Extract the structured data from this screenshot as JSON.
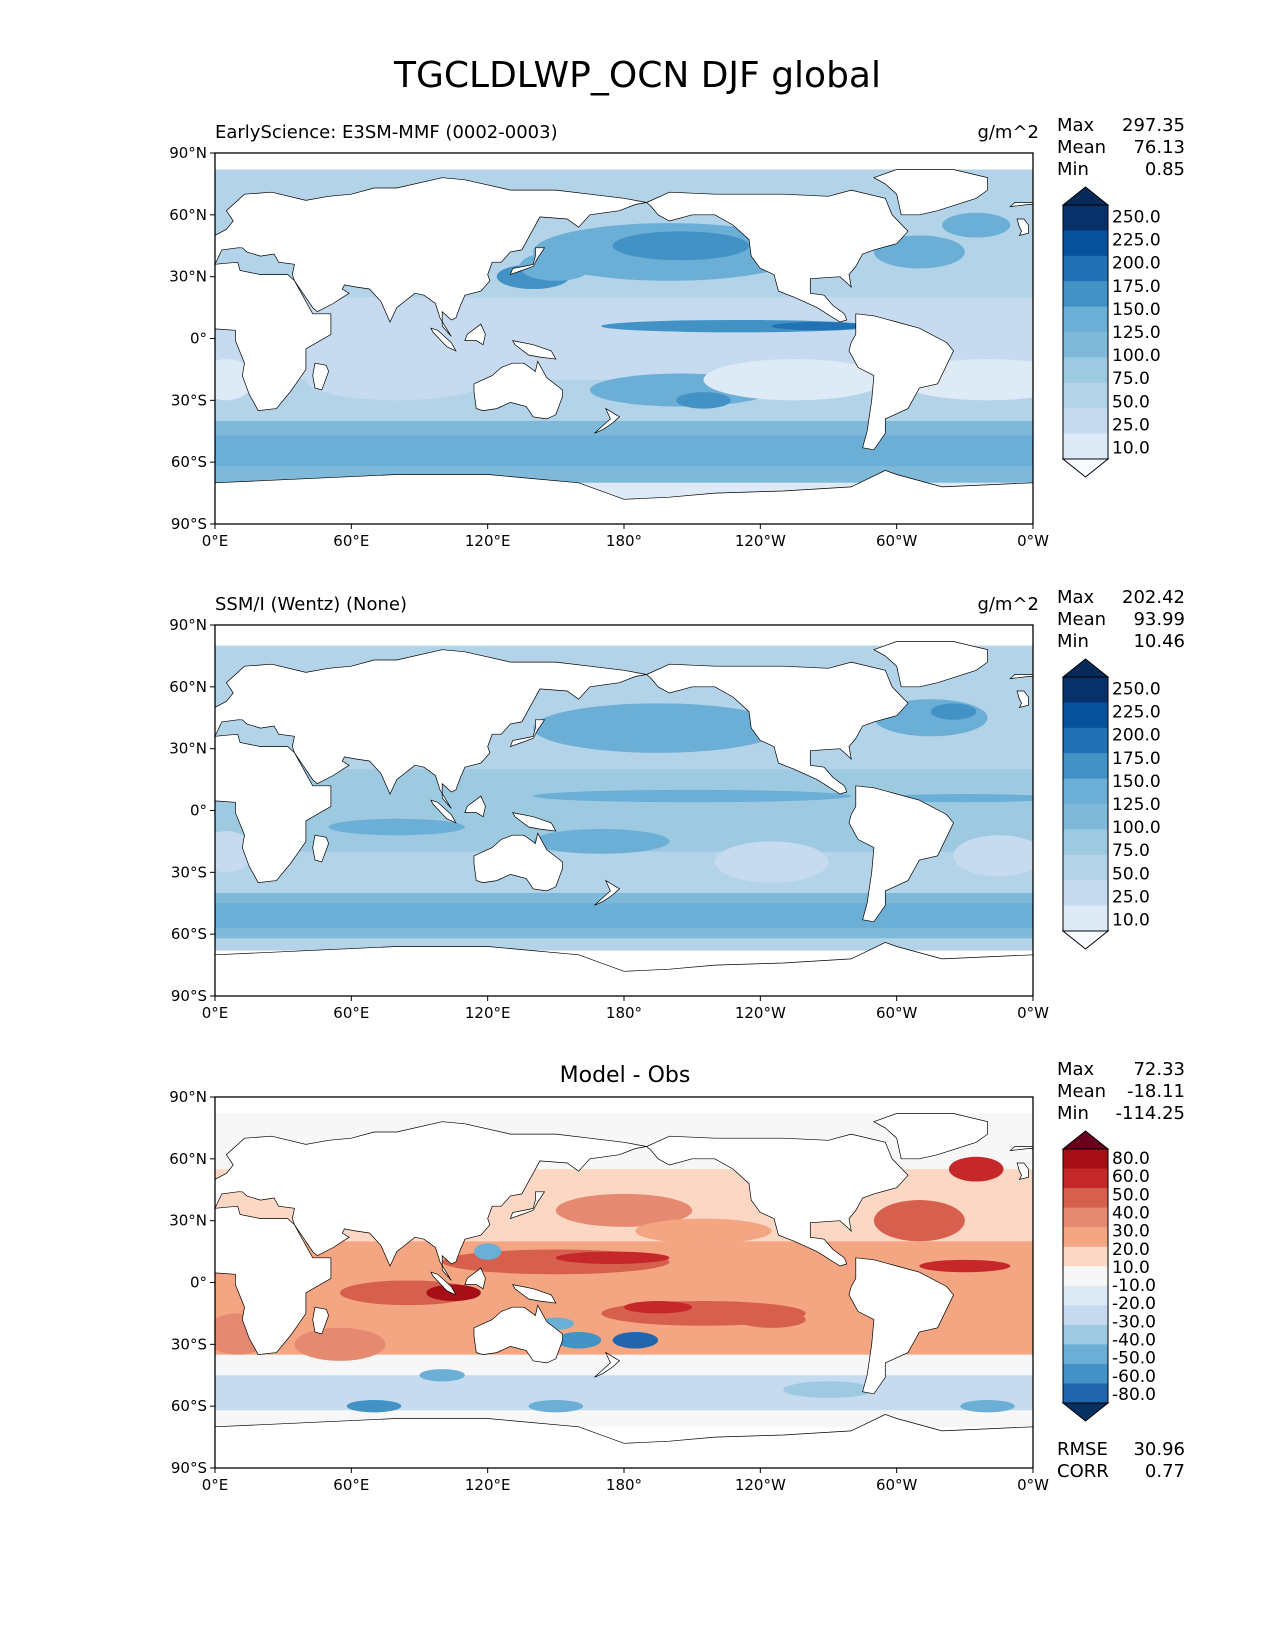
{
  "title": "TGCLDLWP_OCN DJF global",
  "colors": {
    "blues": [
      "#f7fbff",
      "#deebf7",
      "#c6dbef",
      "#b3d3e8",
      "#9ecae1",
      "#7fb9da",
      "#6baed6",
      "#4292c6",
      "#2171b5",
      "#08519c",
      "#08306b",
      "#062a5a"
    ],
    "diff": [
      "#67001f",
      "#a50f15",
      "#c6282a",
      "#d6604d",
      "#e58a70",
      "#f4a582",
      "#fbd7c4",
      "#f7f7f7",
      "#deebf7",
      "#c6dbef",
      "#9ecae1",
      "#6baed6",
      "#4292c6",
      "#2166ac",
      "#053061"
    ],
    "land": "#ffffff",
    "coast": "#000000"
  },
  "chart_data": [
    {
      "type": "heatmap",
      "name": "test",
      "left_title": "EarlyScience: E3SM-MMF (0002-0003)",
      "units": "g/m^2",
      "stats": [
        {
          "label": "Max",
          "value": "297.35"
        },
        {
          "label": "Mean",
          "value": "76.13"
        },
        {
          "label": "Min",
          "value": "0.85"
        }
      ],
      "levels": [
        "250.0",
        "225.0",
        "200.0",
        "175.0",
        "150.0",
        "125.0",
        "100.0",
        "75.0",
        "50.0",
        "25.0",
        "10.0"
      ],
      "x_ticks": [
        "0°E",
        "60°E",
        "120°E",
        "180°",
        "120°W",
        "60°W",
        "0°W"
      ],
      "y_ticks": [
        "90°N",
        "60°N",
        "30°N",
        "0°",
        "30°S",
        "60°S",
        "90°S"
      ],
      "xlim": [
        0,
        360
      ],
      "ylim": [
        -90,
        90
      ]
    },
    {
      "type": "heatmap",
      "name": "reference",
      "left_title": "SSM/I (Wentz) (None)",
      "units": "g/m^2",
      "stats": [
        {
          "label": "Max",
          "value": "202.42"
        },
        {
          "label": "Mean",
          "value": "93.99"
        },
        {
          "label": "Min",
          "value": "10.46"
        }
      ],
      "levels": [
        "250.0",
        "225.0",
        "200.0",
        "175.0",
        "150.0",
        "125.0",
        "100.0",
        "75.0",
        "50.0",
        "25.0",
        "10.0"
      ],
      "x_ticks": [
        "0°E",
        "60°E",
        "120°E",
        "180°",
        "120°W",
        "60°W",
        "0°W"
      ],
      "y_ticks": [
        "90°N",
        "60°N",
        "30°N",
        "0°",
        "30°S",
        "60°S",
        "90°S"
      ],
      "xlim": [
        0,
        360
      ],
      "ylim": [
        -90,
        90
      ]
    },
    {
      "type": "heatmap",
      "name": "difference",
      "center_title": "Model - Obs",
      "stats": [
        {
          "label": "Max",
          "value": "72.33"
        },
        {
          "label": "Mean",
          "value": "-18.11"
        },
        {
          "label": "Min",
          "value": "-114.25"
        }
      ],
      "levels": [
        "80.0",
        "60.0",
        "50.0",
        "40.0",
        "30.0",
        "20.0",
        "10.0",
        "-10.0",
        "-20.0",
        "-30.0",
        "-40.0",
        "-50.0",
        "-60.0",
        "-80.0"
      ],
      "metrics": [
        {
          "label": "RMSE",
          "value": "30.96"
        },
        {
          "label": "CORR",
          "value": "0.77"
        }
      ],
      "x_ticks": [
        "0°E",
        "60°E",
        "120°E",
        "180°",
        "120°W",
        "60°W",
        "0°W"
      ],
      "y_ticks": [
        "90°N",
        "60°N",
        "30°N",
        "0°",
        "30°S",
        "60°S",
        "90°S"
      ],
      "xlim": [
        0,
        360
      ],
      "ylim": [
        -90,
        90
      ]
    }
  ]
}
